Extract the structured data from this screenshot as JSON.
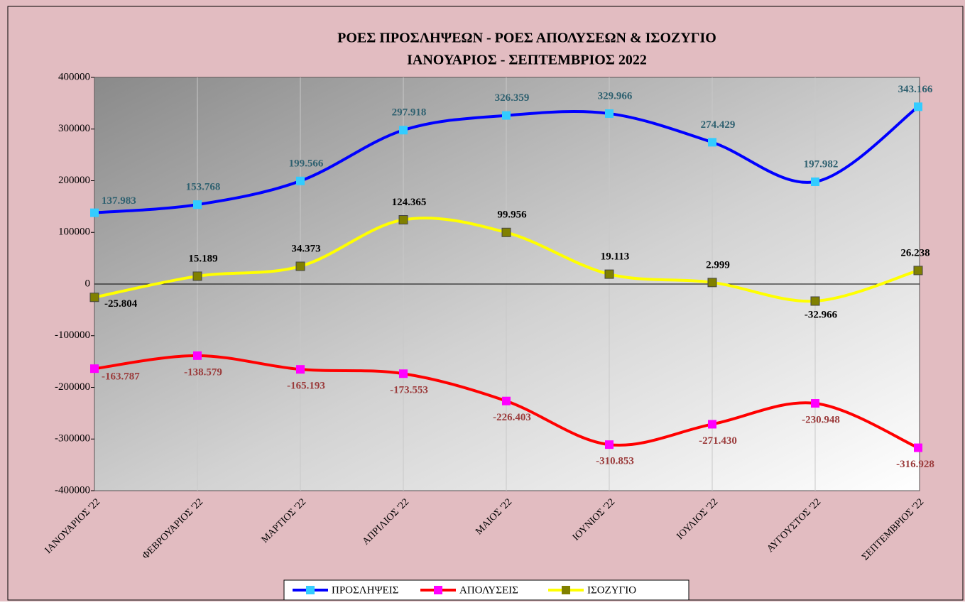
{
  "chart_data": {
    "type": "line",
    "title": "ΡΟΕΣ ΠΡΟΣΛΗΨΕΩΝ -  ΡΟΕΣ ΑΠΟΛΥΣΕΩΝ  & ΙΣΟΖΥΓΙΟ",
    "subtitle": "ΙΑΝΟΥΑΡΙΟΣ  -  ΣΕΠΤΕΜΒΡΙΟΣ  2022",
    "categories": [
      "ΙΑΝΟΥΑΡΙΟΣ '22",
      "ΦΕΒΡΟΥΑΡΙΟΣ '22",
      "ΜΑΡΤΙΟΣ '22",
      "ΑΠΡΙΛΙΟΣ '22",
      "ΜΑΙΟΣ '22",
      "ΙΟΥΝΙΟΣ '22",
      "ΙΟΥΛΙΟΣ '22",
      "ΑΥΓΟΥΣΤΟΣ '22",
      "ΣΕΠΤΕΜΒΡΙΟΣ '22"
    ],
    "series": [
      {
        "name": "ΠΡΟΣΛΗΨΕΙΣ",
        "color": "#0000ff",
        "marker_color": "#33ccff",
        "values": [
          137983,
          153768,
          199566,
          297918,
          326359,
          329966,
          274429,
          197982,
          343166
        ],
        "value_labels": [
          "137.983",
          "153.768",
          "199.566",
          "297.918",
          "326.359",
          "329.966",
          "274.429",
          "197.982",
          "343.166"
        ]
      },
      {
        "name": "ΑΠΟΛΥΣΕΙΣ",
        "color": "#ff0000",
        "marker_color": "#ff00ff",
        "values": [
          -163787,
          -138579,
          -165193,
          -173553,
          -226403,
          -310853,
          -271430,
          -230948,
          -316928
        ],
        "value_labels": [
          "-163.787",
          "-138.579",
          "-165.193",
          "-173.553",
          "-226.403",
          "-310.853",
          "-271.430",
          "-230.948",
          "-316.928"
        ]
      },
      {
        "name": "ΙΣΟΖΥΓΙΟ",
        "color": "#ffff00",
        "marker_color": "#808000",
        "values": [
          -25804,
          15189,
          34373,
          124365,
          99956,
          19113,
          2999,
          -32966,
          26238
        ],
        "value_labels": [
          "-25.804",
          "15.189",
          "34.373",
          "124.365",
          "99.956",
          "19.113",
          "2.999",
          "-32.966",
          "26.238"
        ]
      }
    ],
    "ylim": [
      -400000,
      400000
    ],
    "yticks": [
      -400000,
      -300000,
      -200000,
      -100000,
      0,
      100000,
      200000,
      300000,
      400000
    ],
    "grid": true,
    "legend": "bottom"
  }
}
